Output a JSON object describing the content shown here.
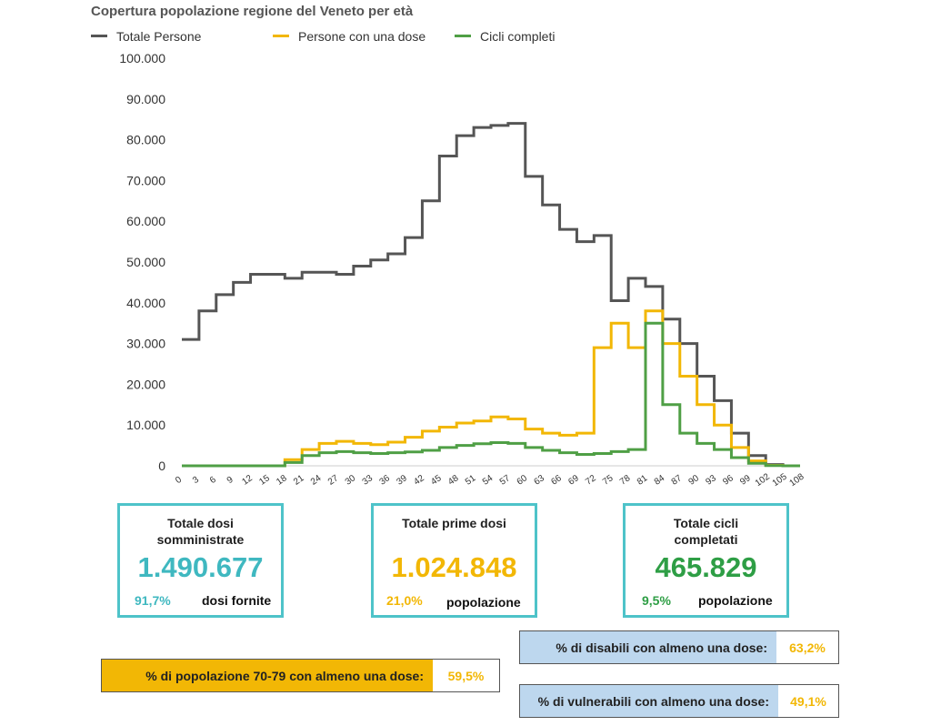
{
  "chart_data": {
    "type": "line",
    "title": "Copertura popolazione regione del Veneto per età",
    "xlabel": "",
    "ylabel": "",
    "ylim": [
      0,
      100000
    ],
    "yticks": [
      "0",
      "10.000",
      "20.000",
      "30.000",
      "40.000",
      "50.000",
      "60.000",
      "70.000",
      "80.000",
      "90.000",
      "100.000"
    ],
    "ytick_values": [
      0,
      10000,
      20000,
      30000,
      40000,
      50000,
      60000,
      70000,
      80000,
      90000,
      100000
    ],
    "xticks": [
      "0",
      "3",
      "6",
      "9",
      "12",
      "15",
      "18",
      "21",
      "24",
      "27",
      "30",
      "33",
      "36",
      "39",
      "42",
      "45",
      "48",
      "51",
      "54",
      "57",
      "60",
      "63",
      "66",
      "69",
      "72",
      "75",
      "78",
      "81",
      "84",
      "87",
      "90",
      "93",
      "96",
      "99",
      "102",
      "105",
      "108"
    ],
    "x": [
      0,
      3,
      6,
      9,
      12,
      15,
      18,
      21,
      24,
      27,
      30,
      33,
      36,
      39,
      42,
      45,
      48,
      51,
      54,
      57,
      60,
      63,
      66,
      69,
      72,
      75,
      78,
      81,
      84,
      87,
      90,
      93,
      96,
      99,
      102,
      105,
      108
    ],
    "legend_position": "top-left",
    "series": [
      {
        "name": "Totale Persone",
        "color": "#555555",
        "values": [
          31000,
          38000,
          42000,
          45000,
          47000,
          47000,
          46000,
          47500,
          47500,
          47000,
          49000,
          50500,
          52000,
          56000,
          65000,
          76000,
          81000,
          83000,
          83500,
          84000,
          71000,
          64000,
          58000,
          55000,
          56500,
          40500,
          46000,
          44000,
          36000,
          30000,
          22000,
          16000,
          8000,
          2500,
          300,
          0,
          0
        ]
      },
      {
        "name": "Persone con una dose",
        "color": "#f2b705",
        "values": [
          0,
          0,
          0,
          0,
          0,
          0,
          1500,
          4000,
          5500,
          6000,
          5500,
          5200,
          5800,
          7000,
          8500,
          9500,
          10500,
          11000,
          12000,
          11500,
          9000,
          8000,
          7500,
          8000,
          29000,
          35000,
          29000,
          38000,
          30000,
          22000,
          15000,
          10000,
          4500,
          1200,
          100,
          0,
          0
        ]
      },
      {
        "name": "Cicli completi",
        "color": "#4f9f45",
        "values": [
          0,
          0,
          0,
          0,
          0,
          0,
          800,
          2500,
          3200,
          3500,
          3200,
          3000,
          3200,
          3400,
          3800,
          4500,
          5000,
          5400,
          5700,
          5500,
          4500,
          3800,
          3200,
          2800,
          3000,
          3500,
          4000,
          35000,
          15000,
          8000,
          5500,
          4000,
          2000,
          600,
          50,
          0,
          0
        ]
      }
    ]
  },
  "cards": [
    {
      "title_line1": "Totale dosi",
      "title_line2": "somministrate",
      "value": "1.490.677",
      "value_color": "#3fb8c0",
      "pct": "91,7%",
      "pct_color": "#3fb8c0",
      "sub": "dosi fornite"
    },
    {
      "title_line1": "Totale prime dosi",
      "title_line2": "",
      "value": "1.024.848",
      "value_color": "#f2b705",
      "pct": "21,0%",
      "pct_color": "#f2b705",
      "sub": "popolazione"
    },
    {
      "title_line1": "Totale cicli",
      "title_line2": "completati",
      "value": "465.829",
      "value_color": "#2e9e45",
      "pct": "9,5%",
      "pct_color": "#2e9e45",
      "sub": "popolazione"
    }
  ],
  "bars": {
    "disabili": {
      "label": "% di disabili con almeno una dose:",
      "value": "63,2%",
      "label_bg": "#bdd7ee"
    },
    "pop7079": {
      "label": "% di popolazione 70-79 con almeno una dose:",
      "value": "59,5%",
      "label_bg": "#f2b705"
    },
    "vulnerabili": {
      "label": "% di vulnerabili con almeno una dose:",
      "value": "49,1%",
      "label_bg": "#bdd7ee"
    }
  }
}
